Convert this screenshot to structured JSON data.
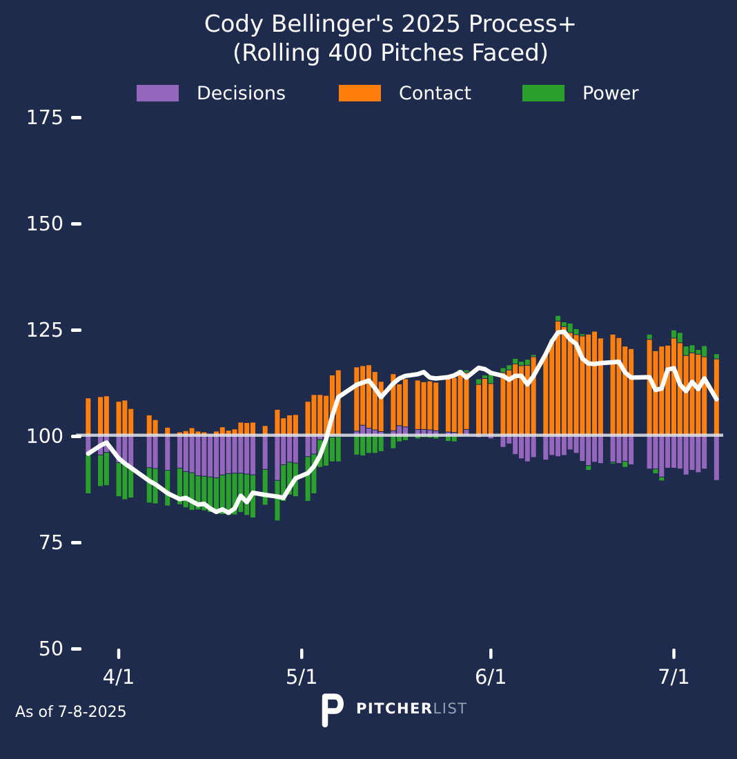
{
  "title": {
    "line1": "Cody Bellinger's 2025 Process+",
    "line2": "(Rolling 400 Pitches Faced)"
  },
  "legend": [
    {
      "label": "Decisions",
      "color": "#9467bd"
    },
    {
      "label": "Contact",
      "color": "#ff7f0e"
    },
    {
      "label": "Power",
      "color": "#2ca02c"
    }
  ],
  "footer": {
    "as_of": "As of 7-8-2025",
    "brand_bold": "PITCHER",
    "brand_light": "LIST"
  },
  "colors": {
    "background": "#1e2b4c",
    "decisions": "#9467bd",
    "contact": "#ff7f0e",
    "power": "#2ca02c",
    "baseline_band": "#e9ecf2",
    "rolling_line": "#ffffff",
    "text": "#ffffff",
    "brand_gray": "#97a0b1"
  },
  "chart_data": {
    "type": "bar",
    "stacked": true,
    "baseline": 100,
    "title": "Cody Bellinger's 2025 Process+ (Rolling 400 Pitches Faced)",
    "series_names": [
      "Decisions",
      "Contact",
      "Power"
    ],
    "line_series_name": "Process+ (rolling total)",
    "y_ticks": [
      175,
      150,
      125,
      100,
      75,
      50
    ],
    "x_ticks": [
      {
        "day": 6,
        "label": "4/1"
      },
      {
        "day": 36,
        "label": "5/1"
      },
      {
        "day": 67,
        "label": "6/1"
      },
      {
        "day": 97,
        "label": "7/1"
      }
    ],
    "bar_fields": [
      "day_offset_from_3_26",
      "decisions_dev",
      "contact_dev",
      "power_dev",
      "process_plus_total"
    ],
    "bars": [
      [
        1,
        -4.5,
        8.8,
        -9.2,
        95.7
      ],
      [
        3,
        -4.6,
        9.1,
        -7.4,
        97.6
      ],
      [
        4,
        -4.0,
        9.3,
        -7.8,
        98.3
      ],
      [
        6,
        -6.4,
        8.0,
        -8.0,
        94.6
      ],
      [
        7,
        -6.7,
        8.3,
        -8.4,
        93.4
      ],
      [
        8,
        -7.3,
        6.3,
        -7.4,
        92.4
      ],
      [
        11,
        -7.6,
        4.8,
        -8.3,
        89.3
      ],
      [
        12,
        -7.8,
        3.7,
        -8.3,
        88.5
      ],
      [
        14,
        -8.2,
        1.9,
        -8.4,
        86.4
      ],
      [
        16,
        -7.7,
        0.8,
        -8.6,
        85.0
      ],
      [
        17,
        -8.5,
        1.1,
        -8.5,
        85.3
      ],
      [
        18,
        -8.8,
        1.8,
        -8.8,
        84.5
      ],
      [
        19,
        -9.5,
        1.0,
        -8.0,
        83.7
      ],
      [
        20,
        -9.6,
        0.8,
        -8.1,
        83.9
      ],
      [
        21,
        -9.8,
        0.3,
        -8.3,
        82.8
      ],
      [
        22,
        -10.0,
        1.0,
        -8.4,
        82.0
      ],
      [
        23,
        -9.3,
        2.0,
        -9.3,
        82.6
      ],
      [
        24,
        -9.0,
        1.2,
        -9.8,
        81.8
      ],
      [
        25,
        -8.9,
        1.5,
        -9.8,
        82.8
      ],
      [
        26,
        -8.9,
        3.1,
        -9.2,
        85.8
      ],
      [
        27,
        -9.1,
        3.0,
        -9.7,
        84.3
      ],
      [
        28,
        -9.3,
        3.1,
        -10.1,
        86.5
      ],
      [
        30,
        -8.0,
        2.3,
        -8.4,
        86.0
      ],
      [
        32,
        -10.6,
        6.1,
        -9.5,
        85.6
      ],
      [
        33,
        -6.9,
        4.1,
        -8.6,
        85.3
      ],
      [
        34,
        -6.3,
        4.8,
        -7.7,
        87.7
      ],
      [
        35,
        -6.5,
        4.9,
        -7.9,
        89.9
      ],
      [
        37,
        -5.0,
        8.0,
        -10.5,
        91.1
      ],
      [
        38,
        -4.4,
        9.6,
        -9.3,
        92.7
      ],
      [
        39,
        -1.0,
        9.6,
        -6.5,
        95.3
      ],
      [
        40,
        -0.8,
        9.4,
        -6.4,
        99.1
      ],
      [
        41,
        -0.4,
        14.2,
        -5.8,
        104.5
      ],
      [
        42,
        -0.3,
        15.4,
        -5.9,
        109.0
      ],
      [
        45,
        1.0,
        15.1,
        -4.6,
        111.9
      ],
      [
        46,
        2.4,
        14.0,
        -4.8,
        112.4
      ],
      [
        47,
        1.7,
        14.9,
        -4.2,
        112.9
      ],
      [
        48,
        1.3,
        13.7,
        -4.2,
        111.1
      ],
      [
        49,
        0.9,
        11.8,
        -3.8,
        109.0
      ],
      [
        51,
        1.1,
        13.4,
        -3.1,
        112.2
      ],
      [
        52,
        2.3,
        9.8,
        -1.5,
        113.4
      ],
      [
        53,
        2.0,
        11.3,
        -1.2,
        114.0
      ],
      [
        55,
        1.4,
        11.6,
        -0.8,
        114.4
      ],
      [
        56,
        1.4,
        11.2,
        -0.5,
        114.9
      ],
      [
        57,
        1.3,
        11.5,
        -0.6,
        113.6
      ],
      [
        58,
        1.1,
        11.4,
        -0.8,
        113.4
      ],
      [
        60,
        0.8,
        13.1,
        -1.4,
        113.7
      ],
      [
        61,
        0.7,
        12.9,
        -1.5,
        114.1
      ],
      [
        62,
        -0.3,
        14.6,
        0.9,
        114.9
      ],
      [
        63,
        1.4,
        13.4,
        0.6,
        113.6
      ],
      [
        65,
        -0.5,
        12.0,
        1.3,
        115.9
      ],
      [
        66,
        0.3,
        13.1,
        0.8,
        115.6
      ],
      [
        67,
        -0.8,
        12.2,
        2.6,
        114.7
      ],
      [
        69,
        -2.8,
        14.8,
        1.1,
        114.0
      ],
      [
        70,
        -2.0,
        15.4,
        1.2,
        113.1
      ],
      [
        71,
        -4.5,
        16.8,
        1.3,
        114.0
      ],
      [
        72,
        -5.5,
        16.4,
        1.0,
        114.0
      ],
      [
        73,
        -6.2,
        16.5,
        1.4,
        112.0
      ],
      [
        74,
        -5.2,
        18.5,
        0.5,
        114.0
      ],
      [
        76,
        -5.8,
        19.1,
        0.3,
        119.1
      ],
      [
        77,
        -4.7,
        22.0,
        0.7,
        122.1
      ],
      [
        78,
        -5.0,
        26.9,
        1.3,
        124.2
      ],
      [
        79,
        -4.7,
        25.6,
        1.1,
        124.4
      ],
      [
        80,
        -3.4,
        24.2,
        2.2,
        122.6
      ],
      [
        81,
        -4.2,
        23.7,
        1.4,
        121.5
      ],
      [
        82,
        -6.1,
        23.4,
        0.5,
        118.1
      ],
      [
        83,
        -7.1,
        23.8,
        -1.1,
        116.9
      ],
      [
        84,
        -6.3,
        24.5,
        0,
        116.8
      ],
      [
        85,
        -6.6,
        22.9,
        0,
        117.0
      ],
      [
        87,
        -6.3,
        23.8,
        -0.4,
        117.2
      ],
      [
        88,
        -6.6,
        23.0,
        0,
        117.3
      ],
      [
        89,
        -6.1,
        21.0,
        -1.4,
        114.8
      ],
      [
        90,
        -6.9,
        20.4,
        0,
        113.6
      ],
      [
        93,
        -7.9,
        22.6,
        1.2,
        113.7
      ],
      [
        94,
        -7.9,
        19.9,
        -1.1,
        110.7
      ],
      [
        95,
        -9.8,
        21.0,
        -0.9,
        111.0
      ],
      [
        96,
        -7.7,
        21.2,
        0,
        115.5
      ],
      [
        97,
        -7.7,
        22.9,
        1.9,
        115.8
      ],
      [
        98,
        -7.9,
        21.8,
        2.4,
        112.0
      ],
      [
        99,
        -9.3,
        18.8,
        2.2,
        110.4
      ],
      [
        100,
        -8.2,
        19.4,
        1.9,
        112.6
      ],
      [
        101,
        -8.75,
        19.1,
        1.1,
        110.9
      ],
      [
        102,
        -7.9,
        18.5,
        2.6,
        113.4
      ],
      [
        104,
        -10.6,
        18.0,
        1.2,
        108.5
      ]
    ]
  }
}
